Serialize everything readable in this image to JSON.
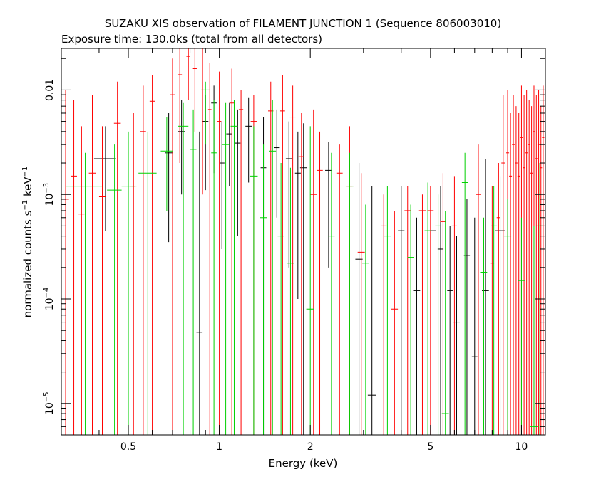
{
  "chart_data": {
    "type": "scatter",
    "title": "SUZAKU XIS observation of FILAMENT JUNCTION 1 (Sequence 806003010)",
    "subtitle": "Exposure time: 130.0ks (total from all detectors)",
    "xlabel": "Energy (keV)",
    "ylabel": {
      "base": "normalized counts s",
      "sup1": "−1",
      "mid": " keV",
      "sup2": "−1"
    },
    "x_scale": "log",
    "y_scale": "log",
    "xlim": [
      0.3,
      12
    ],
    "ylim": [
      5e-06,
      0.025
    ],
    "x_ticks": [
      {
        "value": 0.5,
        "label": "0.5"
      },
      {
        "value": 1,
        "label": "1"
      },
      {
        "value": 2,
        "label": "2"
      },
      {
        "value": 5,
        "label": "5"
      },
      {
        "value": 10,
        "label": "10"
      }
    ],
    "y_ticks": [
      {
        "value": 1e-05,
        "base": "10",
        "exp": "−5"
      },
      {
        "value": 0.0001,
        "base": "10",
        "exp": "−4"
      },
      {
        "value": 0.001,
        "base": "10",
        "exp": "−3"
      },
      {
        "value": 0.01,
        "base": "0.01",
        "exp": ""
      }
    ],
    "grid": false,
    "series": [
      {
        "color": "#000000",
        "points": [
          {
            "x": 0.42,
            "dx": 0.035,
            "y": 0.0022,
            "ylo": 0.00045,
            "yhi": 0.0045
          },
          {
            "x": 0.68,
            "dx": 0.02,
            "y": 0.0025,
            "ylo": 0.00035,
            "yhi": 0.006
          },
          {
            "x": 0.75,
            "dx": 0.02,
            "y": 0.004,
            "ylo": 0.001,
            "yhi": 0.008
          },
          {
            "x": 0.86,
            "dx": 0.02,
            "y": 4.8e-05,
            "ylo": 5e-06,
            "yhi": 0.004
          },
          {
            "x": 0.9,
            "dx": 0.02,
            "y": 0.005,
            "ylo": 0.0011,
            "yhi": 0.009
          },
          {
            "x": 0.96,
            "dx": 0.02,
            "y": 0.0075,
            "ylo": 0.0016,
            "yhi": 0.011
          },
          {
            "x": 1.02,
            "dx": 0.02,
            "y": 0.002,
            "ylo": 0.0003,
            "yhi": 0.005
          },
          {
            "x": 1.08,
            "dx": 0.025,
            "y": 0.0038,
            "ylo": 0.0012,
            "yhi": 0.0075
          },
          {
            "x": 1.15,
            "dx": 0.025,
            "y": 0.0031,
            "ylo": 0.0004,
            "yhi": 0.0065
          },
          {
            "x": 1.25,
            "dx": 0.03,
            "y": 0.0045,
            "ylo": 0.0013,
            "yhi": 0.0085
          },
          {
            "x": 1.4,
            "dx": 0.03,
            "y": 0.0018,
            "ylo": 5e-06,
            "yhi": 0.0055
          },
          {
            "x": 1.55,
            "dx": 0.035,
            "y": 0.0028,
            "ylo": 0.0006,
            "yhi": 0.0065
          },
          {
            "x": 1.7,
            "dx": 0.04,
            "y": 0.0022,
            "ylo": 0.0002,
            "yhi": 0.005
          },
          {
            "x": 1.82,
            "dx": 0.04,
            "y": 0.0016,
            "ylo": 0.0001,
            "yhi": 0.004
          },
          {
            "x": 1.9,
            "dx": 0.05,
            "y": 0.0018,
            "ylo": 5e-06,
            "yhi": 0.0048
          },
          {
            "x": 2.3,
            "dx": 0.06,
            "y": 0.0017,
            "ylo": 0.0002,
            "yhi": 0.0032
          },
          {
            "x": 2.9,
            "dx": 0.08,
            "y": 0.00024,
            "ylo": 5e-06,
            "yhi": 0.002
          },
          {
            "x": 3.2,
            "dx": 0.1,
            "y": 1.2e-05,
            "ylo": 5e-06,
            "yhi": 0.0012
          },
          {
            "x": 4.0,
            "dx": 0.1,
            "y": 0.00045,
            "ylo": 5e-06,
            "yhi": 0.0012
          },
          {
            "x": 4.5,
            "dx": 0.12,
            "y": 0.00012,
            "ylo": 5e-06,
            "yhi": 0.0006
          },
          {
            "x": 5.1,
            "dx": 0.12,
            "y": 0.00045,
            "ylo": 5e-06,
            "yhi": 0.0018
          },
          {
            "x": 5.4,
            "dx": 0.12,
            "y": 0.0003,
            "ylo": 5e-06,
            "yhi": 0.0012
          },
          {
            "x": 5.8,
            "dx": 0.12,
            "y": 0.00012,
            "ylo": 5e-06,
            "yhi": 0.0005
          },
          {
            "x": 6.1,
            "dx": 0.15,
            "y": 6e-05,
            "ylo": 5e-06,
            "yhi": 0.0004
          },
          {
            "x": 6.6,
            "dx": 0.15,
            "y": 0.00026,
            "ylo": 5e-06,
            "yhi": 0.0009
          },
          {
            "x": 7.0,
            "dx": 0.15,
            "y": 2.8e-05,
            "ylo": 5e-06,
            "yhi": 0.0006
          },
          {
            "x": 7.6,
            "dx": 0.2,
            "y": 0.00012,
            "ylo": 5e-06,
            "yhi": 0.0022
          },
          {
            "x": 8.5,
            "dx": 0.3,
            "y": 0.00045,
            "ylo": 5e-06,
            "yhi": 0.0015
          }
        ]
      },
      {
        "color": "#ff0000",
        "points": [
          {
            "x": 0.31,
            "dx": 0.008,
            "y": 0.0009,
            "ylo": 5e-06,
            "yhi": 0.01
          },
          {
            "x": 0.33,
            "dx": 0.008,
            "y": 0.0015,
            "ylo": 5e-06,
            "yhi": 0.008
          },
          {
            "x": 0.35,
            "dx": 0.008,
            "y": 0.00065,
            "ylo": 5e-06,
            "yhi": 0.0045
          },
          {
            "x": 0.38,
            "dx": 0.01,
            "y": 0.0016,
            "ylo": 5e-06,
            "yhi": 0.009
          },
          {
            "x": 0.41,
            "dx": 0.01,
            "y": 0.00095,
            "ylo": 5e-06,
            "yhi": 0.0045
          },
          {
            "x": 0.46,
            "dx": 0.012,
            "y": 0.0048,
            "ylo": 5e-06,
            "yhi": 0.012
          },
          {
            "x": 0.52,
            "dx": 0.012,
            "y": 0.0012,
            "ylo": 5e-06,
            "yhi": 0.006
          },
          {
            "x": 0.56,
            "dx": 0.012,
            "y": 0.004,
            "ylo": 5e-06,
            "yhi": 0.011
          },
          {
            "x": 0.6,
            "dx": 0.012,
            "y": 0.0078,
            "ylo": 5e-06,
            "yhi": 0.014
          },
          {
            "x": 0.7,
            "dx": 0.012,
            "y": 0.009,
            "ylo": 5e-06,
            "yhi": 0.02
          },
          {
            "x": 0.74,
            "dx": 0.012,
            "y": 0.014,
            "ylo": 0.002,
            "yhi": 0.025
          },
          {
            "x": 0.79,
            "dx": 0.012,
            "y": 0.021,
            "ylo": 0.008,
            "yhi": 0.025
          },
          {
            "x": 0.83,
            "dx": 0.012,
            "y": 0.016,
            "ylo": 0.004,
            "yhi": 0.025
          },
          {
            "x": 0.88,
            "dx": 0.012,
            "y": 0.019,
            "ylo": 0.001,
            "yhi": 0.025
          },
          {
            "x": 0.93,
            "dx": 0.012,
            "y": 0.0065,
            "ylo": 5e-06,
            "yhi": 0.018
          },
          {
            "x": 1.0,
            "dx": 0.015,
            "y": 0.005,
            "ylo": 5e-06,
            "yhi": 0.015
          },
          {
            "x": 1.1,
            "dx": 0.02,
            "y": 0.0075,
            "ylo": 5e-06,
            "yhi": 0.016
          },
          {
            "x": 1.18,
            "dx": 0.02,
            "y": 0.0065,
            "ylo": 5e-06,
            "yhi": 0.01
          },
          {
            "x": 1.3,
            "dx": 0.03,
            "y": 0.005,
            "ylo": 5e-06,
            "yhi": 0.009
          },
          {
            "x": 1.48,
            "dx": 0.03,
            "y": 0.0063,
            "ylo": 5e-06,
            "yhi": 0.012
          },
          {
            "x": 1.62,
            "dx": 0.03,
            "y": 0.0063,
            "ylo": 5e-06,
            "yhi": 0.014
          },
          {
            "x": 1.75,
            "dx": 0.04,
            "y": 0.0055,
            "ylo": 5e-06,
            "yhi": 0.011
          },
          {
            "x": 1.87,
            "dx": 0.04,
            "y": 0.0023,
            "ylo": 5e-06,
            "yhi": 0.006
          },
          {
            "x": 2.05,
            "dx": 0.05,
            "y": 0.001,
            "ylo": 5e-06,
            "yhi": 0.0065
          },
          {
            "x": 2.15,
            "dx": 0.05,
            "y": 0.0017,
            "ylo": 5e-06,
            "yhi": 0.004
          },
          {
            "x": 2.5,
            "dx": 0.06,
            "y": 0.0016,
            "ylo": 5e-06,
            "yhi": 0.003
          },
          {
            "x": 2.7,
            "dx": 0.06,
            "y": 0.0012,
            "ylo": 5e-06,
            "yhi": 0.0045
          },
          {
            "x": 2.95,
            "dx": 0.08,
            "y": 0.00028,
            "ylo": 5e-06,
            "yhi": 0.0016
          },
          {
            "x": 3.5,
            "dx": 0.08,
            "y": 0.0005,
            "ylo": 5e-06,
            "yhi": 0.001
          },
          {
            "x": 3.8,
            "dx": 0.1,
            "y": 8e-05,
            "ylo": 5e-06,
            "yhi": 0.0007
          },
          {
            "x": 4.2,
            "dx": 0.1,
            "y": 0.0007,
            "ylo": 5e-06,
            "yhi": 0.0012
          },
          {
            "x": 4.7,
            "dx": 0.12,
            "y": 0.0007,
            "ylo": 5e-06,
            "yhi": 0.001
          },
          {
            "x": 5.0,
            "dx": 0.12,
            "y": 0.0007,
            "ylo": 5e-06,
            "yhi": 0.0012
          },
          {
            "x": 5.5,
            "dx": 0.12,
            "y": 0.00055,
            "ylo": 5e-06,
            "yhi": 0.0016
          },
          {
            "x": 6.0,
            "dx": 0.12,
            "y": 0.0005,
            "ylo": 5e-06,
            "yhi": 0.0015
          },
          {
            "x": 7.2,
            "dx": 0.12,
            "y": 0.001,
            "ylo": 5e-06,
            "yhi": 0.003
          },
          {
            "x": 8.0,
            "dx": 0.12,
            "y": 0.00022,
            "ylo": 5e-06,
            "yhi": 0.0012
          },
          {
            "x": 8.4,
            "dx": 0.12,
            "y": 0.0006,
            "ylo": 5e-06,
            "yhi": 0.002
          },
          {
            "x": 8.7,
            "dx": 0.12,
            "y": 0.002,
            "ylo": 5e-06,
            "yhi": 0.009
          },
          {
            "x": 9.0,
            "dx": 0.1,
            "y": 0.0025,
            "ylo": 5e-06,
            "yhi": 0.01
          },
          {
            "x": 9.2,
            "dx": 0.1,
            "y": 0.0015,
            "ylo": 5e-06,
            "yhi": 0.006
          },
          {
            "x": 9.4,
            "dx": 0.1,
            "y": 0.003,
            "ylo": 5e-06,
            "yhi": 0.009
          },
          {
            "x": 9.6,
            "dx": 0.1,
            "y": 0.002,
            "ylo": 5e-06,
            "yhi": 0.007
          },
          {
            "x": 9.8,
            "dx": 0.1,
            "y": 0.0015,
            "ylo": 5e-06,
            "yhi": 0.006
          },
          {
            "x": 10.0,
            "dx": 0.1,
            "y": 0.0035,
            "ylo": 5e-06,
            "yhi": 0.011
          },
          {
            "x": 10.2,
            "dx": 0.1,
            "y": 0.0018,
            "ylo": 5e-06,
            "yhi": 0.009
          },
          {
            "x": 10.4,
            "dx": 0.1,
            "y": 0.0025,
            "ylo": 5e-06,
            "yhi": 0.01
          },
          {
            "x": 10.6,
            "dx": 0.1,
            "y": 0.003,
            "ylo": 5e-06,
            "yhi": 0.008
          },
          {
            "x": 10.8,
            "dx": 0.1,
            "y": 0.0016,
            "ylo": 5e-06,
            "yhi": 0.007
          },
          {
            "x": 11.0,
            "dx": 0.1,
            "y": 0.004,
            "ylo": 5e-06,
            "yhi": 0.011
          },
          {
            "x": 11.2,
            "dx": 0.1,
            "y": 0.0022,
            "ylo": 5e-06,
            "yhi": 0.009
          },
          {
            "x": 11.4,
            "dx": 0.1,
            "y": 0.003,
            "ylo": 5e-06,
            "yhi": 0.01
          },
          {
            "x": 11.6,
            "dx": 0.1,
            "y": 0.0018,
            "ylo": 5e-06,
            "yhi": 0.007
          },
          {
            "x": 11.8,
            "dx": 0.1,
            "y": 0.0035,
            "ylo": 5e-06,
            "yhi": 0.011
          }
        ]
      },
      {
        "color": "#00d000",
        "points": [
          {
            "x": 0.36,
            "dx": 0.05,
            "y": 0.0012,
            "ylo": 5e-06,
            "yhi": 0.0025
          },
          {
            "x": 0.45,
            "dx": 0.025,
            "y": 0.0011,
            "ylo": 5e-06,
            "yhi": 0.003
          },
          {
            "x": 0.5,
            "dx": 0.025,
            "y": 0.0012,
            "ylo": 5e-06,
            "yhi": 0.004
          },
          {
            "x": 0.58,
            "dx": 0.04,
            "y": 0.0016,
            "ylo": 5e-06,
            "yhi": 0.004
          },
          {
            "x": 0.67,
            "dx": 0.03,
            "y": 0.0026,
            "ylo": 0.0007,
            "yhi": 0.0055
          },
          {
            "x": 0.76,
            "dx": 0.03,
            "y": 0.0045,
            "ylo": 5e-06,
            "yhi": 0.0075
          },
          {
            "x": 0.82,
            "dx": 0.02,
            "y": 0.0027,
            "ylo": 5e-06,
            "yhi": 0.0065
          },
          {
            "x": 0.9,
            "dx": 0.03,
            "y": 0.01,
            "ylo": 0.003,
            "yhi": 0.012
          },
          {
            "x": 0.96,
            "dx": 0.02,
            "y": 0.0025,
            "ylo": 5e-06,
            "yhi": 0.008
          },
          {
            "x": 1.05,
            "dx": 0.03,
            "y": 0.003,
            "ylo": 5e-06,
            "yhi": 0.0075
          },
          {
            "x": 1.12,
            "dx": 0.03,
            "y": 0.0045,
            "ylo": 5e-06,
            "yhi": 0.008
          },
          {
            "x": 1.3,
            "dx": 0.04,
            "y": 0.0015,
            "ylo": 5e-06,
            "yhi": 0.0045
          },
          {
            "x": 1.4,
            "dx": 0.04,
            "y": 0.0006,
            "ylo": 5e-06,
            "yhi": 0.003
          },
          {
            "x": 1.5,
            "dx": 0.04,
            "y": 0.0026,
            "ylo": 5e-06,
            "yhi": 0.008
          },
          {
            "x": 1.6,
            "dx": 0.04,
            "y": 0.0004,
            "ylo": 5e-06,
            "yhi": 0.002
          },
          {
            "x": 1.72,
            "dx": 0.05,
            "y": 0.00022,
            "ylo": 5e-06,
            "yhi": 0.0018
          },
          {
            "x": 2.0,
            "dx": 0.06,
            "y": 8e-05,
            "ylo": 5e-06,
            "yhi": 0.0045
          },
          {
            "x": 2.35,
            "dx": 0.06,
            "y": 0.0004,
            "ylo": 5e-06,
            "yhi": 0.0025
          },
          {
            "x": 2.7,
            "dx": 0.08,
            "y": 0.0012,
            "ylo": 5e-06,
            "yhi": 0.0025
          },
          {
            "x": 3.05,
            "dx": 0.08,
            "y": 0.00022,
            "ylo": 5e-06,
            "yhi": 0.0008
          },
          {
            "x": 3.6,
            "dx": 0.1,
            "y": 0.0004,
            "ylo": 5e-06,
            "yhi": 0.0012
          },
          {
            "x": 4.3,
            "dx": 0.1,
            "y": 0.00025,
            "ylo": 5e-06,
            "yhi": 0.0008
          },
          {
            "x": 4.9,
            "dx": 0.12,
            "y": 0.00045,
            "ylo": 5e-06,
            "yhi": 0.0013
          },
          {
            "x": 5.3,
            "dx": 0.12,
            "y": 0.0005,
            "ylo": 5e-06,
            "yhi": 0.001
          },
          {
            "x": 5.6,
            "dx": 0.15,
            "y": 8e-06,
            "ylo": 5e-06,
            "yhi": 0.0007
          },
          {
            "x": 6.5,
            "dx": 0.15,
            "y": 0.0013,
            "ylo": 5e-06,
            "yhi": 0.0025
          },
          {
            "x": 7.5,
            "dx": 0.2,
            "y": 0.00018,
            "ylo": 5e-06,
            "yhi": 0.0006
          },
          {
            "x": 8.1,
            "dx": 0.2,
            "y": 0.0005,
            "ylo": 5e-06,
            "yhi": 0.0012
          },
          {
            "x": 9.0,
            "dx": 0.25,
            "y": 0.0004,
            "ylo": 5e-06,
            "yhi": 0.0009
          },
          {
            "x": 10.0,
            "dx": 0.25,
            "y": 0.00015,
            "ylo": 5e-06,
            "yhi": 0.0006
          },
          {
            "x": 11.0,
            "dx": 0.3,
            "y": 6e-06,
            "ylo": 5e-06,
            "yhi": 0.0005
          },
          {
            "x": 11.5,
            "dx": 0.3,
            "y": 0.0005,
            "ylo": 5e-06,
            "yhi": 0.002
          }
        ]
      }
    ]
  }
}
